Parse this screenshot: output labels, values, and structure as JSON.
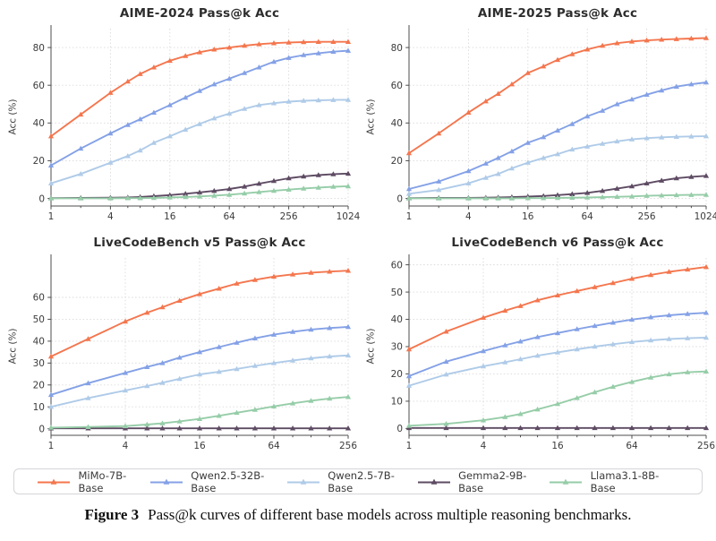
{
  "figure": {
    "caption_label": "Figure 3",
    "caption_text": "Pass@k curves of different base models across multiple reasoning benchmarks."
  },
  "legend": {
    "items": [
      {
        "label": "MiMo-7B-Base",
        "color": "#F4764E"
      },
      {
        "label": "Qwen2.5-32B-Base",
        "color": "#84A1E6"
      },
      {
        "label": "Qwen2.5-7B-Base",
        "color": "#AFCBE8"
      },
      {
        "label": "Gemma2-9B-Base",
        "color": "#5E4B63"
      },
      {
        "label": "Llama3.1-8B-Base",
        "color": "#96CDA8"
      }
    ]
  },
  "chart_data": [
    {
      "type": "line",
      "title": "AIME-2024 Pass@k Acc",
      "xlabel": "",
      "ylabel": "Acc (%)",
      "xscale": "log2",
      "grid": true,
      "x": [
        1,
        2,
        4,
        6,
        8,
        11,
        16,
        23,
        32,
        45,
        64,
        91,
        128,
        181,
        256,
        362,
        512,
        724,
        1024
      ],
      "xticks": [
        1,
        4,
        16,
        64,
        256,
        1024
      ],
      "ylim": [
        -4,
        90
      ],
      "yticks": [
        0,
        20,
        40,
        60,
        80
      ],
      "series": [
        {
          "name": "MiMo-7B-Base",
          "color": "#F4764E",
          "values": [
            33,
            44.5,
            56,
            62,
            66,
            69.5,
            73,
            75.5,
            77.5,
            79,
            80,
            81,
            81.8,
            82.3,
            82.7,
            82.9,
            83,
            83,
            83
          ]
        },
        {
          "name": "Qwen2.5-32B-Base",
          "color": "#84A1E6",
          "values": [
            17.5,
            26.5,
            34.5,
            39,
            42,
            45.5,
            49.5,
            53.5,
            57,
            60.5,
            63.5,
            66.5,
            69.5,
            72.5,
            74.5,
            76,
            77,
            77.8,
            78.3
          ]
        },
        {
          "name": "Qwen2.5-7B-Base",
          "color": "#AFCBE8",
          "values": [
            8,
            13,
            19,
            22.5,
            25.5,
            29.5,
            33,
            36.5,
            39.5,
            42.5,
            45,
            47.5,
            49.5,
            50.5,
            51.3,
            51.8,
            52,
            52.2,
            52.3
          ]
        },
        {
          "name": "Gemma2-9B-Base",
          "color": "#5E4B63",
          "values": [
            0.2,
            0.3,
            0.4,
            0.5,
            0.8,
            1.2,
            1.8,
            2.5,
            3.2,
            4,
            5,
            6.3,
            7.8,
            9.3,
            10.7,
            11.7,
            12.4,
            12.9,
            13.2
          ]
        },
        {
          "name": "Llama3.1-8B-Base",
          "color": "#96CDA8",
          "values": [
            0.1,
            0.1,
            0.1,
            0.2,
            0.2,
            0.3,
            0.5,
            0.8,
            1.1,
            1.5,
            2,
            2.7,
            3.4,
            4.1,
            4.7,
            5.3,
            5.8,
            6.2,
            6.5
          ]
        }
      ]
    },
    {
      "type": "line",
      "title": "AIME-2025 Pass@k Acc",
      "xlabel": "",
      "ylabel": "Acc (%)",
      "xscale": "log2",
      "grid": true,
      "x": [
        1,
        2,
        4,
        6,
        8,
        11,
        16,
        23,
        32,
        45,
        64,
        91,
        128,
        181,
        256,
        362,
        512,
        724,
        1024
      ],
      "xticks": [
        1,
        4,
        16,
        64,
        256,
        1024
      ],
      "ylim": [
        -4,
        90
      ],
      "yticks": [
        0,
        20,
        40,
        60,
        80
      ],
      "series": [
        {
          "name": "MiMo-7B-Base",
          "color": "#F4764E",
          "values": [
            24,
            34.5,
            45.5,
            51.5,
            55.5,
            60.5,
            66.5,
            70,
            73.5,
            76.5,
            79,
            81,
            82.3,
            83.2,
            83.8,
            84.2,
            84.5,
            84.8,
            85
          ]
        },
        {
          "name": "Qwen2.5-32B-Base",
          "color": "#84A1E6",
          "values": [
            5,
            9,
            14.5,
            18.5,
            21.5,
            25,
            29.5,
            32.5,
            36,
            39.5,
            43.5,
            46.5,
            50,
            52.5,
            55,
            57.3,
            59.3,
            60.5,
            61.5
          ]
        },
        {
          "name": "Qwen2.5-7B-Base",
          "color": "#AFCBE8",
          "values": [
            2.5,
            4.5,
            8,
            11,
            13,
            16,
            19,
            21.5,
            23.5,
            26,
            27.5,
            29,
            30.3,
            31.3,
            32,
            32.4,
            32.7,
            32.9,
            33
          ]
        },
        {
          "name": "Gemma2-9B-Base",
          "color": "#5E4B63",
          "values": [
            0.2,
            0.3,
            0.3,
            0.4,
            0.5,
            0.7,
            1,
            1.3,
            1.8,
            2.3,
            3,
            4,
            5.2,
            6.5,
            8,
            9.5,
            10.7,
            11.5,
            12
          ]
        },
        {
          "name": "Llama3.1-8B-Base",
          "color": "#96CDA8",
          "values": [
            0.1,
            0.1,
            0.1,
            0.1,
            0.1,
            0.1,
            0.2,
            0.2,
            0.3,
            0.4,
            0.5,
            0.7,
            0.9,
            1.1,
            1.4,
            1.6,
            1.8,
            1.9,
            2
          ]
        }
      ]
    },
    {
      "type": "line",
      "title": "LiveCodeBench v5 Pass@k Acc",
      "xlabel": "",
      "ylabel": "Acc (%)",
      "xscale": "log2",
      "grid": true,
      "x": [
        1,
        2,
        4,
        6,
        8,
        11,
        16,
        23,
        32,
        45,
        64,
        91,
        128,
        181,
        256
      ],
      "xticks": [
        1,
        4,
        16,
        64,
        256
      ],
      "ylim": [
        -3,
        78
      ],
      "yticks": [
        0,
        10,
        20,
        30,
        40,
        50,
        60
      ],
      "series": [
        {
          "name": "MiMo-7B-Base",
          "color": "#F4764E",
          "values": [
            33,
            41,
            49,
            53,
            55.5,
            58.5,
            61.5,
            64,
            66.3,
            68,
            69.5,
            70.5,
            71.3,
            71.8,
            72.2
          ]
        },
        {
          "name": "Qwen2.5-32B-Base",
          "color": "#84A1E6",
          "values": [
            15.5,
            20.8,
            25.5,
            28.2,
            30,
            32.5,
            35,
            37.3,
            39.3,
            41.3,
            43,
            44.3,
            45.3,
            46,
            46.5
          ]
        },
        {
          "name": "Qwen2.5-7B-Base",
          "color": "#AFCBE8",
          "values": [
            10,
            14,
            17.5,
            19.5,
            21,
            22.8,
            24.8,
            26,
            27.3,
            28.7,
            30,
            31.2,
            32.2,
            33,
            33.5
          ]
        },
        {
          "name": "Gemma2-9B-Base",
          "color": "#5E4B63",
          "values": [
            0.2,
            0.2,
            0.2,
            0.2,
            0.2,
            0.2,
            0.2,
            0.2,
            0.2,
            0.2,
            0.2,
            0.2,
            0.2,
            0.2,
            0.2
          ]
        },
        {
          "name": "Llama3.1-8B-Base",
          "color": "#96CDA8",
          "values": [
            0.5,
            0.8,
            1.2,
            1.9,
            2.5,
            3.4,
            4.5,
            5.9,
            7.3,
            8.7,
            10.2,
            11.6,
            12.8,
            13.8,
            14.5
          ]
        }
      ]
    },
    {
      "type": "line",
      "title": "LiveCodeBench v6 Pass@k Acc",
      "xlabel": "",
      "ylabel": "Acc (%)",
      "xscale": "log2",
      "grid": true,
      "x": [
        1,
        2,
        4,
        6,
        8,
        11,
        16,
        23,
        32,
        45,
        64,
        91,
        128,
        181,
        256
      ],
      "xticks": [
        1,
        4,
        16,
        64,
        256
      ],
      "ylim": [
        -2.5,
        62.5
      ],
      "yticks": [
        0,
        10,
        20,
        30,
        40,
        50,
        60
      ],
      "series": [
        {
          "name": "MiMo-7B-Base",
          "color": "#F4764E",
          "values": [
            29,
            35.5,
            40.6,
            43.2,
            44.9,
            47,
            48.8,
            50.4,
            51.8,
            53.3,
            54.9,
            56.3,
            57.4,
            58.3,
            59.2
          ]
        },
        {
          "name": "Qwen2.5-32B-Base",
          "color": "#84A1E6",
          "values": [
            19.2,
            24.5,
            28.4,
            30.5,
            31.9,
            33.5,
            35,
            36.4,
            37.6,
            38.8,
            39.9,
            40.8,
            41.5,
            42,
            42.4
          ]
        },
        {
          "name": "Qwen2.5-7B-Base",
          "color": "#AFCBE8",
          "values": [
            15.7,
            19.8,
            22.8,
            24.3,
            25.4,
            26.7,
            27.9,
            29,
            30,
            30.9,
            31.7,
            32.3,
            32.8,
            33.1,
            33.3
          ]
        },
        {
          "name": "Gemma2-9B-Base",
          "color": "#5E4B63",
          "values": [
            0.2,
            0.2,
            0.2,
            0.2,
            0.2,
            0.2,
            0.2,
            0.2,
            0.2,
            0.2,
            0.2,
            0.2,
            0.2,
            0.2,
            0.2
          ]
        },
        {
          "name": "Llama3.1-8B-Base",
          "color": "#96CDA8",
          "values": [
            1,
            1.7,
            3,
            4.2,
            5.3,
            7,
            9,
            11.2,
            13.3,
            15.3,
            17.1,
            18.7,
            19.9,
            20.6,
            20.9
          ]
        }
      ]
    }
  ]
}
